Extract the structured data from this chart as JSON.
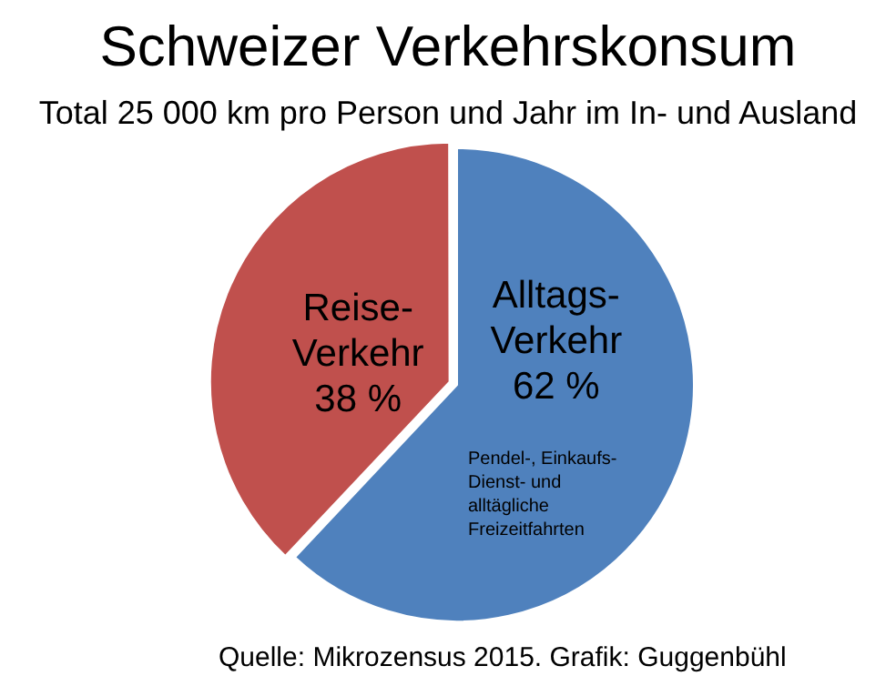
{
  "chart_data": {
    "type": "pie",
    "title": "Schweizer Verkehrskonsum",
    "subtitle": "Total 25 000 km pro Person und Jahr im In- und Ausland",
    "categories": [
      "Alltags-Verkehr",
      "Reise-Verkehr"
    ],
    "values": [
      62,
      38
    ],
    "colors": [
      "#4f81bd",
      "#c0504d"
    ],
    "value_labels": [
      "62 %",
      "38 %"
    ],
    "legend": false,
    "annotations": [
      "Pendel-,  Einkaufs- Dienst- und alltägliche Freizeitfahrten",
      "Quelle: Mikrozensus 2015. Grafik: Guggenbühl"
    ]
  }
}
